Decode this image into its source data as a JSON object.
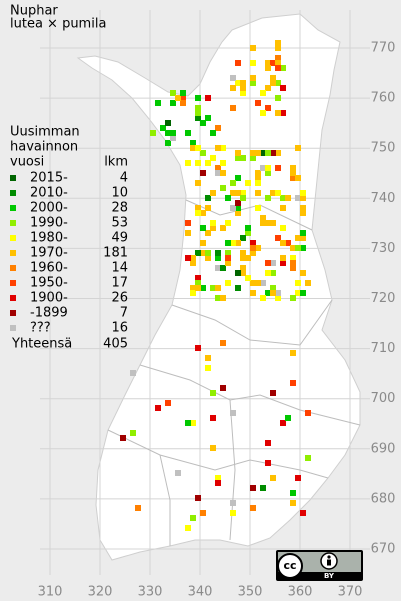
{
  "title": [
    "Nuphar",
    "lutea × pumila"
  ],
  "legend": {
    "heading": [
      "Uusimman",
      "havainnon",
      "vuosi"
    ],
    "count_heading": "lkm",
    "rows": [
      {
        "label": "2015-",
        "count": "4",
        "color": "#006400"
      },
      {
        "label": "2010-",
        "count": "10",
        "color": "#008c00"
      },
      {
        "label": "2000-",
        "count": "28",
        "color": "#00c800"
      },
      {
        "label": "1990-",
        "count": "53",
        "color": "#90ee00"
      },
      {
        "label": "1980-",
        "count": "49",
        "color": "#ffff00"
      },
      {
        "label": "1970-",
        "count": "181",
        "color": "#ffc000"
      },
      {
        "label": "1960-",
        "count": "14",
        "color": "#ff8000"
      },
      {
        "label": "1950-",
        "count": "17",
        "color": "#ff4000"
      },
      {
        "label": "1900-",
        "count": "26",
        "color": "#e00000"
      },
      {
        "label": "-1899",
        "count": "7",
        "color": "#a00000"
      },
      {
        "label": "???",
        "count": "16",
        "color": "#c0c0c0"
      }
    ],
    "total_label": "Yhteensä",
    "total_count": "405"
  },
  "x_axis": [
    "310",
    "320",
    "330",
    "340",
    "350",
    "360",
    "370"
  ],
  "y_axis": [
    "770",
    "760",
    "750",
    "740",
    "730",
    "720",
    "710",
    "700",
    "690",
    "680",
    "670"
  ],
  "license": {
    "logo": "cc",
    "label": "BY"
  }
}
